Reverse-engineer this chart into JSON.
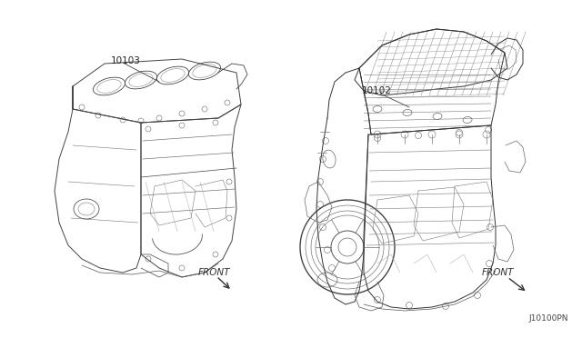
{
  "background_color": "#ffffff",
  "fig_width": 6.4,
  "fig_height": 3.72,
  "dpi": 100,
  "label_10103": "10103",
  "label_10102": "10102",
  "label_front_left": "FRONT",
  "label_front_right": "FRONT",
  "label_part_number": "J10100PN",
  "lc": "#333333",
  "lw": 0.55
}
